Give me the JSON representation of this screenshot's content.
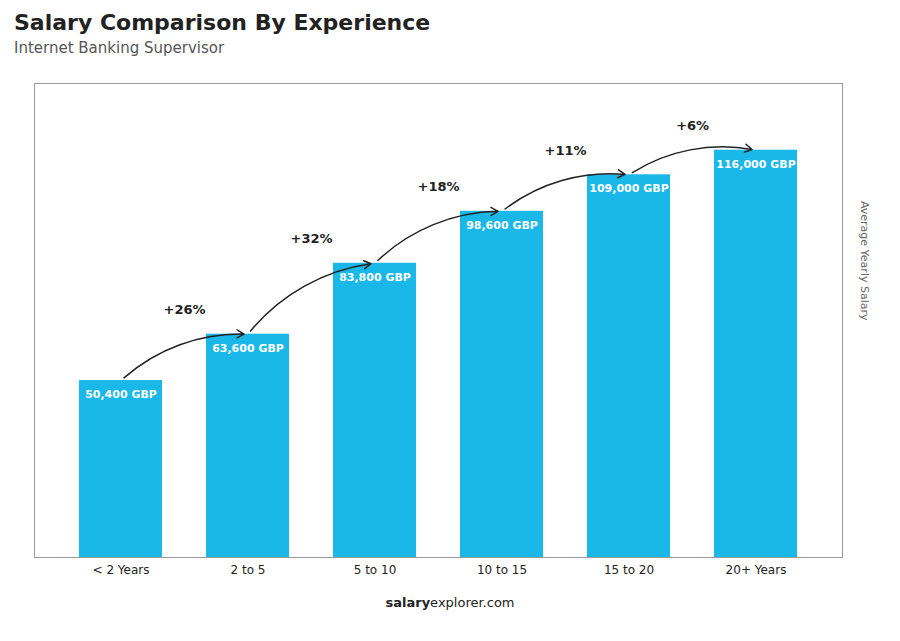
{
  "chart_data": {
    "type": "bar",
    "title": "Salary Comparison By Experience",
    "subtitle": "Internet Banking Supervisor",
    "categories": [
      "< 2 Years",
      "2 to 5",
      "5 to 10",
      "10 to 15",
      "15 to 20",
      "20+ Years"
    ],
    "values": [
      50400,
      63600,
      83800,
      98600,
      109000,
      116000
    ],
    "value_labels": [
      "50,400 GBP",
      "63,600 GBP",
      "83,800 GBP",
      "98,600 GBP",
      "109,000 GBP",
      "116,000 GBP"
    ],
    "data_labels": true,
    "color": "#1ab8e8",
    "ylabel": "Average Yearly Salary",
    "ylim": [
      0,
      135000
    ],
    "yticks": [],
    "tick_labels": "x",
    "grid": false,
    "annotations": [
      "+26%",
      "+32%",
      "+18%",
      "+11%",
      "+6%"
    ],
    "footer": [
      "salary",
      "explorer.com"
    ]
  }
}
